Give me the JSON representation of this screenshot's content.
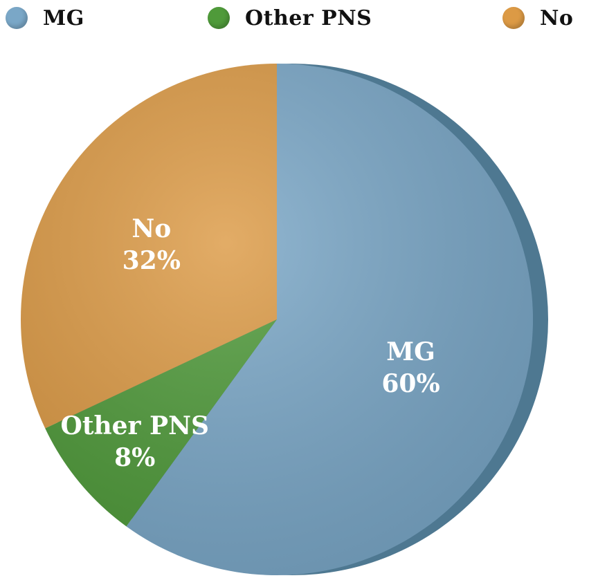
{
  "chart_data": {
    "type": "pie",
    "title": "",
    "categories": [
      "MG",
      "Other PNS",
      "No"
    ],
    "values": [
      60,
      8,
      32
    ],
    "value_labels": [
      "60%",
      "8%",
      "32%"
    ],
    "colors": [
      "#7aa7c7",
      "#4f9a3a",
      "#dc9a45"
    ],
    "legend": {
      "placement": "top",
      "entries": [
        "MG",
        "Other PNS",
        "No"
      ]
    },
    "start_angle": "12 o'clock",
    "direction": "clockwise"
  }
}
